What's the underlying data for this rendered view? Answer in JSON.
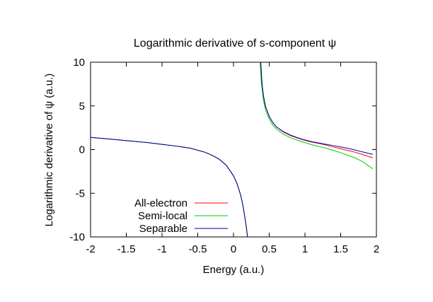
{
  "chart_data": {
    "type": "line",
    "title": "Logarithmic derivative of s-component ψ",
    "xlabel": "Energy (a.u.)",
    "ylabel": "Logarithmic derivative of ψ (a.u.)",
    "xlim": [
      -2,
      2
    ],
    "ylim": [
      -10,
      10
    ],
    "xticks": [
      -2,
      -1.5,
      -1,
      -0.5,
      0,
      0.5,
      1,
      1.5,
      2
    ],
    "yticks": [
      -10,
      -5,
      0,
      5,
      10
    ],
    "xtick_labels": [
      "-2",
      "-1.5",
      "-1",
      "-0.5",
      "0",
      "0.5",
      "1",
      "1.5",
      "2"
    ],
    "ytick_labels": [
      "-10",
      "-5",
      "0",
      "5",
      "10"
    ],
    "grid": false,
    "legend_position": "bottom-left",
    "series": [
      {
        "name": "All-electron",
        "color": "#ff0000",
        "x": [
          -2,
          -1.8,
          -1.6,
          -1.4,
          -1.2,
          -1.0,
          -0.8,
          -0.6,
          -0.4,
          -0.3,
          -0.2,
          -0.1,
          0.0,
          0.05,
          0.1,
          0.13,
          0.16,
          0.18,
          0.2,
          null,
          0.38,
          0.4,
          0.42,
          0.45,
          0.5,
          0.55,
          0.6,
          0.7,
          0.8,
          0.9,
          1.0,
          1.1,
          1.2,
          1.3,
          1.4,
          1.5,
          1.6,
          1.7,
          1.8,
          1.95
        ],
        "y": [
          1.4,
          1.25,
          1.1,
          0.95,
          0.8,
          0.6,
          0.4,
          0.15,
          -0.3,
          -0.65,
          -1.1,
          -1.8,
          -3.0,
          -3.9,
          -5.2,
          -6.3,
          -7.8,
          -8.9,
          -10.2,
          null,
          10.2,
          7.5,
          6.1,
          4.9,
          3.8,
          3.1,
          2.6,
          2.0,
          1.6,
          1.3,
          1.05,
          0.85,
          0.7,
          0.5,
          0.3,
          0.1,
          -0.1,
          -0.3,
          -0.55,
          -0.95
        ]
      },
      {
        "name": "Semi-local",
        "color": "#00cc00",
        "x": [
          -2,
          -1.8,
          -1.6,
          -1.4,
          -1.2,
          -1.0,
          -0.8,
          -0.6,
          -0.4,
          -0.3,
          -0.2,
          -0.1,
          0.0,
          0.05,
          0.1,
          0.13,
          0.16,
          0.18,
          0.2,
          null,
          0.37,
          0.39,
          0.42,
          0.45,
          0.5,
          0.55,
          0.6,
          0.7,
          0.8,
          0.9,
          1.0,
          1.1,
          1.2,
          1.3,
          1.4,
          1.5,
          1.6,
          1.7,
          1.8,
          1.95
        ],
        "y": [
          1.4,
          1.25,
          1.1,
          0.95,
          0.8,
          0.6,
          0.4,
          0.15,
          -0.3,
          -0.65,
          -1.1,
          -1.8,
          -3.0,
          -3.9,
          -5.2,
          -6.3,
          -7.8,
          -8.9,
          -10.2,
          null,
          10.2,
          7.6,
          5.6,
          4.5,
          3.5,
          2.8,
          2.35,
          1.75,
          1.35,
          1.05,
          0.8,
          0.55,
          0.35,
          0.15,
          -0.1,
          -0.35,
          -0.65,
          -0.95,
          -1.35,
          -2.2
        ]
      },
      {
        "name": "Separable",
        "color": "#0000aa",
        "x": [
          -2,
          -1.8,
          -1.6,
          -1.4,
          -1.2,
          -1.0,
          -0.8,
          -0.6,
          -0.4,
          -0.3,
          -0.2,
          -0.1,
          0.0,
          0.05,
          0.1,
          0.13,
          0.16,
          0.18,
          0.2,
          null,
          0.38,
          0.4,
          0.42,
          0.45,
          0.5,
          0.55,
          0.6,
          0.7,
          0.8,
          0.9,
          1.0,
          1.1,
          1.2,
          1.3,
          1.4,
          1.5,
          1.6,
          1.7,
          1.8,
          1.95
        ],
        "y": [
          1.4,
          1.25,
          1.1,
          0.95,
          0.8,
          0.6,
          0.4,
          0.15,
          -0.3,
          -0.65,
          -1.1,
          -1.8,
          -3.0,
          -3.9,
          -5.2,
          -6.3,
          -7.8,
          -8.9,
          -10.2,
          null,
          10.2,
          7.5,
          6.1,
          4.9,
          3.8,
          3.1,
          2.6,
          2.05,
          1.65,
          1.35,
          1.1,
          0.9,
          0.75,
          0.6,
          0.45,
          0.3,
          0.15,
          -0.05,
          -0.25,
          -0.55
        ]
      }
    ]
  }
}
